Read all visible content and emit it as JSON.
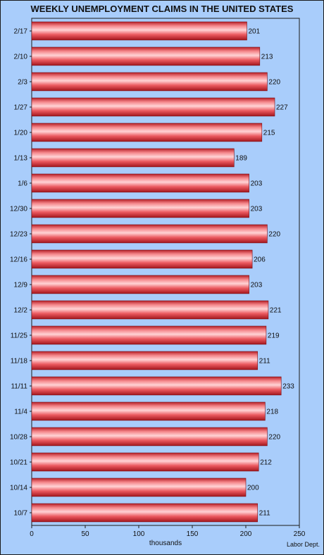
{
  "chart_data": {
    "type": "bar",
    "orientation": "horizontal",
    "title": "WEEKLY UNEMPLOYMENT CLAIMS IN THE UNITED STATES",
    "xlabel": "thousands",
    "ylabel": "",
    "xlim": [
      0,
      250
    ],
    "xticks": [
      0,
      50,
      100,
      150,
      200,
      250
    ],
    "categories": [
      "2/17",
      "2/10",
      "2/3",
      "1/27",
      "1/20",
      "1/13",
      "1/6",
      "12/30",
      "12/23",
      "12/16",
      "12/9",
      "12/2",
      "11/25",
      "11/18",
      "11/11",
      "11/4",
      "10/28",
      "10/21",
      "10/14",
      "10/7"
    ],
    "values": [
      201,
      213,
      220,
      227,
      215,
      189,
      203,
      203,
      220,
      206,
      203,
      221,
      219,
      211,
      233,
      218,
      220,
      212,
      200,
      211
    ],
    "grid": false,
    "bar_color": "#e8454a",
    "background_color": "#a9cdfb",
    "source": "Labor Dept."
  }
}
